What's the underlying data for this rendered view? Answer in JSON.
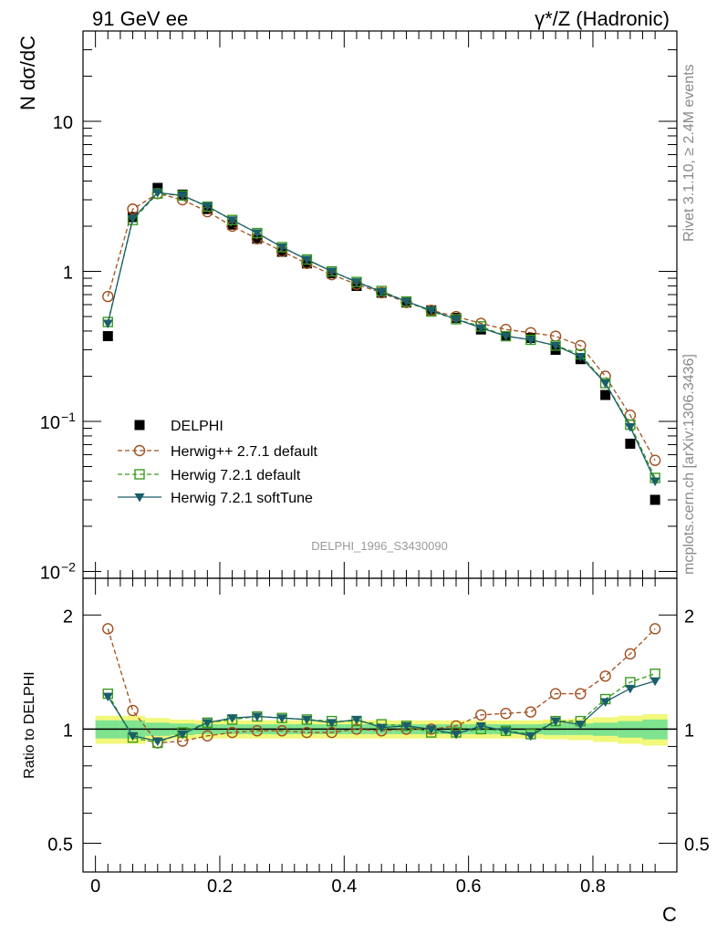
{
  "header": {
    "left": "91 GeV ee",
    "right": "γ*/Z (Hadronic)"
  },
  "side_labels": {
    "rivet": "Rivet 3.1.10, ≥ 2.4M events",
    "mcplots": "mcplots.cern.ch [arXiv:1306.3436]"
  },
  "watermark": "DELPHI_1996_S3430090",
  "colors": {
    "delphi": "#000000",
    "herwigpp": "#a0501e",
    "h721def": "#3b9b1f",
    "h721soft": "#1a5e6a",
    "band_inner": "#7fe38f",
    "band_outer": "#f1f87a"
  },
  "chart_data": [
    {
      "type": "line",
      "panel": "main",
      "ylabel": "N dσ/dC",
      "yscale": "log",
      "ylim": [
        0.009,
        40
      ],
      "xlim": [
        -0.02,
        0.935
      ],
      "yticks": [
        {
          "value": 10,
          "label": "10"
        },
        {
          "value": 1,
          "label": "1"
        },
        {
          "value": 0.1,
          "label": "10",
          "sup": "−1"
        },
        {
          "value": 0.01,
          "label": "10",
          "sup": "−2"
        }
      ],
      "x": [
        0.02,
        0.06,
        0.1,
        0.14,
        0.18,
        0.22,
        0.26,
        0.3,
        0.34,
        0.38,
        0.42,
        0.46,
        0.5,
        0.54,
        0.58,
        0.62,
        0.66,
        0.7,
        0.74,
        0.78,
        0.82,
        0.86,
        0.9
      ],
      "series": [
        {
          "name": "DELPHI",
          "style": "data",
          "color": "#000000",
          "values": [
            0.37,
            2.3,
            3.6,
            3.25,
            2.6,
            2.05,
            1.65,
            1.35,
            1.13,
            0.97,
            0.8,
            0.72,
            0.62,
            0.55,
            0.49,
            0.41,
            0.37,
            0.36,
            0.3,
            0.26,
            0.15,
            0.071,
            0.03
          ]
        },
        {
          "name": "Herwig++ 2.7.1 default",
          "style": "circle-dashed",
          "color": "#a0501e",
          "values": [
            0.68,
            2.6,
            3.3,
            3.0,
            2.5,
            2.0,
            1.65,
            1.36,
            1.13,
            0.95,
            0.82,
            0.72,
            0.62,
            0.55,
            0.5,
            0.45,
            0.41,
            0.39,
            0.37,
            0.32,
            0.2,
            0.11,
            0.055
          ]
        },
        {
          "name": "Herwig 7.2.1 default",
          "style": "square-dashed",
          "color": "#3b9b1f",
          "values": [
            0.46,
            2.2,
            3.3,
            3.2,
            2.7,
            2.2,
            1.8,
            1.45,
            1.2,
            1.0,
            0.85,
            0.74,
            0.63,
            0.54,
            0.48,
            0.43,
            0.37,
            0.35,
            0.32,
            0.28,
            0.18,
            0.095,
            0.042
          ]
        },
        {
          "name": "Herwig 7.2.1 softTune",
          "style": "triangle-solid",
          "color": "#1a5e6a",
          "values": [
            0.45,
            2.25,
            3.35,
            3.2,
            2.72,
            2.2,
            1.8,
            1.45,
            1.2,
            1.0,
            0.85,
            0.73,
            0.63,
            0.55,
            0.48,
            0.42,
            0.37,
            0.35,
            0.32,
            0.27,
            0.18,
            0.092,
            0.04
          ]
        }
      ],
      "legend_position": "lower-left"
    },
    {
      "type": "line",
      "panel": "ratio",
      "ylabel": "Ratio to DELPHI",
      "xlabel": "C",
      "yscale": "log",
      "ylim": [
        0.42,
        2.5
      ],
      "xlim": [
        -0.02,
        0.935
      ],
      "yticks": [
        {
          "value": 2,
          "label": "2"
        },
        {
          "value": 1,
          "label": "1"
        },
        {
          "value": 0.5,
          "label": "0.5"
        }
      ],
      "xticks": [
        {
          "value": 0,
          "label": "0"
        },
        {
          "value": 0.2,
          "label": "0.2"
        },
        {
          "value": 0.4,
          "label": "0.4"
        },
        {
          "value": 0.6,
          "label": "0.6"
        },
        {
          "value": 0.8,
          "label": "0.8"
        }
      ],
      "x": [
        0.02,
        0.06,
        0.1,
        0.14,
        0.18,
        0.22,
        0.26,
        0.3,
        0.34,
        0.38,
        0.42,
        0.46,
        0.5,
        0.54,
        0.58,
        0.62,
        0.66,
        0.7,
        0.74,
        0.78,
        0.82,
        0.86,
        0.9
      ],
      "band_inner": [
        0.055,
        0.055,
        0.04,
        0.035,
        0.03,
        0.03,
        0.03,
        0.03,
        0.03,
        0.03,
        0.03,
        0.03,
        0.03,
        0.03,
        0.03,
        0.03,
        0.03,
        0.03,
        0.035,
        0.035,
        0.04,
        0.05,
        0.06
      ],
      "band_outer": [
        0.085,
        0.085,
        0.07,
        0.06,
        0.055,
        0.055,
        0.055,
        0.055,
        0.055,
        0.055,
        0.055,
        0.055,
        0.055,
        0.055,
        0.055,
        0.055,
        0.055,
        0.055,
        0.06,
        0.065,
        0.075,
        0.085,
        0.095
      ],
      "series": [
        {
          "name": "Herwig++ 2.7.1 default",
          "style": "circle-dashed",
          "color": "#a0501e",
          "values": [
            1.84,
            1.12,
            0.92,
            0.93,
            0.96,
            0.98,
            0.99,
            0.99,
            0.98,
            0.98,
            1.0,
            0.99,
            1.0,
            1.0,
            1.02,
            1.09,
            1.1,
            1.11,
            1.24,
            1.24,
            1.38,
            1.58,
            1.84
          ]
        },
        {
          "name": "Herwig 7.2.1 default",
          "style": "square-dashed",
          "color": "#3b9b1f",
          "values": [
            1.24,
            0.95,
            0.92,
            0.98,
            1.04,
            1.06,
            1.08,
            1.07,
            1.06,
            1.05,
            1.05,
            1.03,
            1.02,
            0.98,
            0.98,
            1.0,
            0.99,
            0.97,
            1.05,
            1.05,
            1.2,
            1.33,
            1.4
          ]
        },
        {
          "name": "Herwig 7.2.1 softTune",
          "style": "triangle-solid",
          "color": "#1a5e6a",
          "values": [
            1.22,
            0.96,
            0.93,
            0.97,
            1.04,
            1.07,
            1.08,
            1.07,
            1.06,
            1.04,
            1.06,
            1.01,
            1.02,
            1.0,
            0.97,
            1.02,
            0.99,
            0.96,
            1.05,
            1.03,
            1.18,
            1.28,
            1.34
          ]
        }
      ]
    }
  ]
}
